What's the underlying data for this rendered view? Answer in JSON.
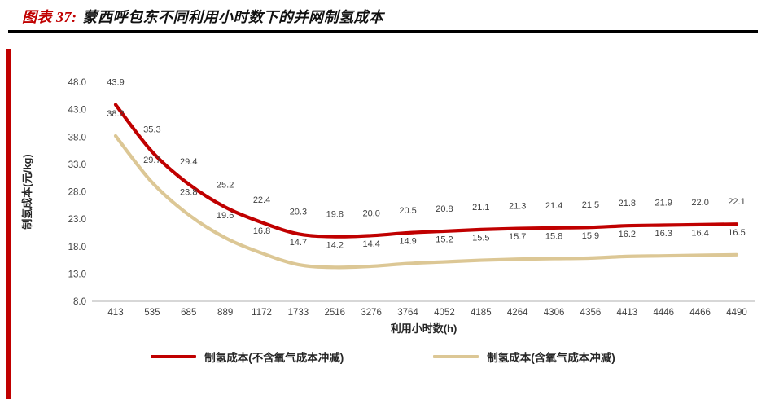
{
  "header": {
    "prefix": "图表 37:",
    "title": "蒙西呼包东不同利用小时数下的并网制氢成本"
  },
  "chart_data": {
    "type": "line",
    "title": "蒙西呼包东不同利用小时数下的并网制氢成本",
    "x_categories": [
      413,
      535,
      685,
      889,
      1172,
      1733,
      2516,
      3276,
      3764,
      4052,
      4185,
      4264,
      4306,
      4356,
      4413,
      4446,
      4466,
      4490
    ],
    "series": [
      {
        "name": "制氢成本(不含氧气成本冲减)",
        "color": "#c00000",
        "values": [
          43.9,
          35.3,
          29.4,
          25.2,
          22.4,
          20.3,
          19.8,
          20.0,
          20.5,
          20.8,
          21.1,
          21.3,
          21.4,
          21.5,
          21.8,
          21.9,
          22.0,
          22.1
        ]
      },
      {
        "name": "制氢成本(含氧气成本冲减)",
        "color": "#dcc795",
        "values": [
          38.2,
          29.7,
          23.8,
          19.6,
          16.8,
          14.7,
          14.2,
          14.4,
          14.9,
          15.2,
          15.5,
          15.7,
          15.8,
          15.9,
          16.2,
          16.3,
          16.4,
          16.5
        ]
      }
    ],
    "xlabel": "利用小时数(h)",
    "ylabel": "制氢成本(元/kg)",
    "ylim": [
      8.0,
      48.0
    ],
    "yticks": [
      "8.0",
      "13.0",
      "18.0",
      "23.0",
      "28.0",
      "33.0",
      "38.0",
      "43.0",
      "48.0"
    ],
    "grid": false,
    "legend_position": "bottom",
    "data_labels": true
  },
  "colors": {
    "accent_red": "#c00000",
    "series_tan": "#dcc795",
    "header_rule": "#000000",
    "axis_line": "#bfbfbf",
    "label_text": "#404040"
  }
}
